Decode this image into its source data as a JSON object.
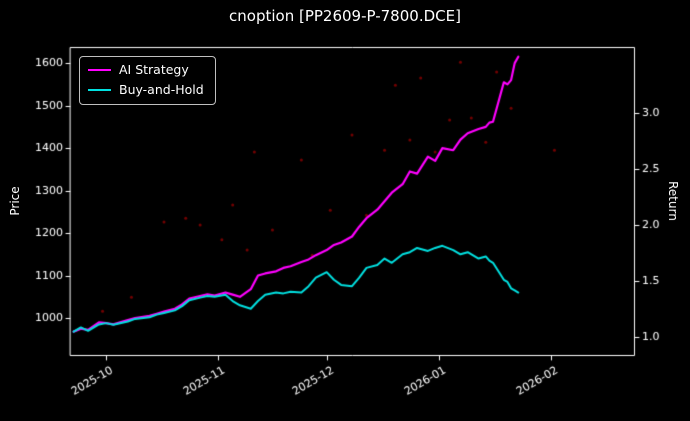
{
  "title": "cnoption [PP2609-P-7800.DCE]",
  "legend": {
    "items": [
      {
        "label": "AI Strategy",
        "color": "#ff00ff"
      },
      {
        "label": "Buy-and-Hold",
        "color": "#00e0e0"
      }
    ],
    "position": "upper left"
  },
  "axes": {
    "left_label": "Price",
    "right_label": "Return"
  },
  "chart_data": {
    "type": "line",
    "title": "cnoption [PP2609-P-7800.DCE]",
    "background": "#000000",
    "grid": false,
    "legend_position": "upper left",
    "ylabel_left": "Price",
    "ylabel_right": "Return",
    "xlim": [
      "2025-09-21",
      "2026-02-24"
    ],
    "ylim_left": [
      913,
      1638
    ],
    "ylim_right": [
      0.84,
      3.59
    ],
    "y_left_ticks": [
      1000,
      1100,
      1200,
      1300,
      1400,
      1500,
      1600
    ],
    "y_right_ticks": [
      1.0,
      1.5,
      2.0,
      2.5,
      3.0
    ],
    "x_ticks": [
      {
        "label": "2025-10",
        "date": "2025-10-01"
      },
      {
        "label": "2025-11",
        "date": "2025-11-01"
      },
      {
        "label": "2025-12",
        "date": "2025-12-01"
      },
      {
        "label": "2026-01",
        "date": "2026-01-01"
      },
      {
        "label": "2026-02",
        "date": "2026-02-01"
      }
    ],
    "x_dates": [
      "2025-09-22",
      "2025-09-24",
      "2025-09-26",
      "2025-09-29",
      "2025-10-01",
      "2025-10-03",
      "2025-10-07",
      "2025-10-09",
      "2025-10-13",
      "2025-10-15",
      "2025-10-17",
      "2025-10-20",
      "2025-10-22",
      "2025-10-24",
      "2025-10-27",
      "2025-10-29",
      "2025-10-31",
      "2025-11-03",
      "2025-11-05",
      "2025-11-07",
      "2025-11-10",
      "2025-11-12",
      "2025-11-14",
      "2025-11-17",
      "2025-11-19",
      "2025-11-21",
      "2025-11-24",
      "2025-11-26",
      "2025-11-28",
      "2025-12-01",
      "2025-12-03",
      "2025-12-05",
      "2025-12-08",
      "2025-12-10",
      "2025-12-12",
      "2025-12-15",
      "2025-12-17",
      "2025-12-19",
      "2025-12-22",
      "2025-12-24",
      "2025-12-26",
      "2025-12-29",
      "2025-12-31",
      "2026-01-02",
      "2026-01-05",
      "2026-01-07",
      "2026-01-09",
      "2026-01-12",
      "2026-01-14",
      "2026-01-15",
      "2026-01-16",
      "2026-01-19",
      "2026-01-20",
      "2026-01-21",
      "2026-01-22",
      "2026-01-23"
    ],
    "series": [
      {
        "name": "AI Strategy",
        "color": "#ff00ff",
        "width": 2.2,
        "axis": "left",
        "values": [
          968,
          975,
          972,
          990,
          988,
          985,
          995,
          1000,
          1005,
          1010,
          1015,
          1022,
          1032,
          1046,
          1052,
          1056,
          1053,
          1060,
          1055,
          1050,
          1068,
          1100,
          1105,
          1110,
          1118,
          1122,
          1132,
          1138,
          1148,
          1160,
          1172,
          1178,
          1192,
          1215,
          1235,
          1255,
          1275,
          1295,
          1315,
          1345,
          1340,
          1380,
          1370,
          1400,
          1395,
          1420,
          1435,
          1445,
          1450,
          1460,
          1462,
          1555,
          1550,
          1560,
          1600,
          1615
        ]
      },
      {
        "name": "Buy-and-Hold",
        "color": "#00e0e0",
        "width": 2,
        "axis": "left",
        "values": [
          968,
          978,
          970,
          985,
          988,
          984,
          992,
          998,
          1002,
          1008,
          1012,
          1018,
          1028,
          1042,
          1048,
          1052,
          1050,
          1055,
          1040,
          1030,
          1022,
          1040,
          1055,
          1060,
          1058,
          1062,
          1060,
          1075,
          1095,
          1108,
          1090,
          1078,
          1075,
          1095,
          1118,
          1125,
          1140,
          1130,
          1150,
          1155,
          1165,
          1158,
          1165,
          1170,
          1160,
          1150,
          1155,
          1140,
          1145,
          1135,
          1130,
          1090,
          1085,
          1070,
          1065,
          1060
        ]
      }
    ],
    "scatter": {
      "name": "signal-dots",
      "color": "#ff0000",
      "alpha": 0.45,
      "points": [
        [
          "2025-09-30",
          1016
        ],
        [
          "2025-10-08",
          1049
        ],
        [
          "2025-10-17",
          1226
        ],
        [
          "2025-10-23",
          1235
        ],
        [
          "2025-10-27",
          1219
        ],
        [
          "2025-11-02",
          1184
        ],
        [
          "2025-11-05",
          1266
        ],
        [
          "2025-11-09",
          1160
        ],
        [
          "2025-11-11",
          1391
        ],
        [
          "2025-11-16",
          1207
        ],
        [
          "2025-11-24",
          1372
        ],
        [
          "2025-11-27",
          1148
        ],
        [
          "2025-12-02",
          1254
        ],
        [
          "2025-12-08",
          1431
        ],
        [
          "2025-12-12",
          1242
        ],
        [
          "2025-12-17",
          1395
        ],
        [
          "2025-12-20",
          1548
        ],
        [
          "2025-12-24",
          1419
        ],
        [
          "2025-12-27",
          1565
        ],
        [
          "2025-12-31",
          1391
        ],
        [
          "2026-01-04",
          1466
        ],
        [
          "2026-01-07",
          1602
        ],
        [
          "2026-01-10",
          1471
        ],
        [
          "2026-01-14",
          1414
        ],
        [
          "2026-01-17",
          1579
        ],
        [
          "2026-01-21",
          1494
        ],
        [
          "2026-02-02",
          1395
        ]
      ]
    }
  }
}
